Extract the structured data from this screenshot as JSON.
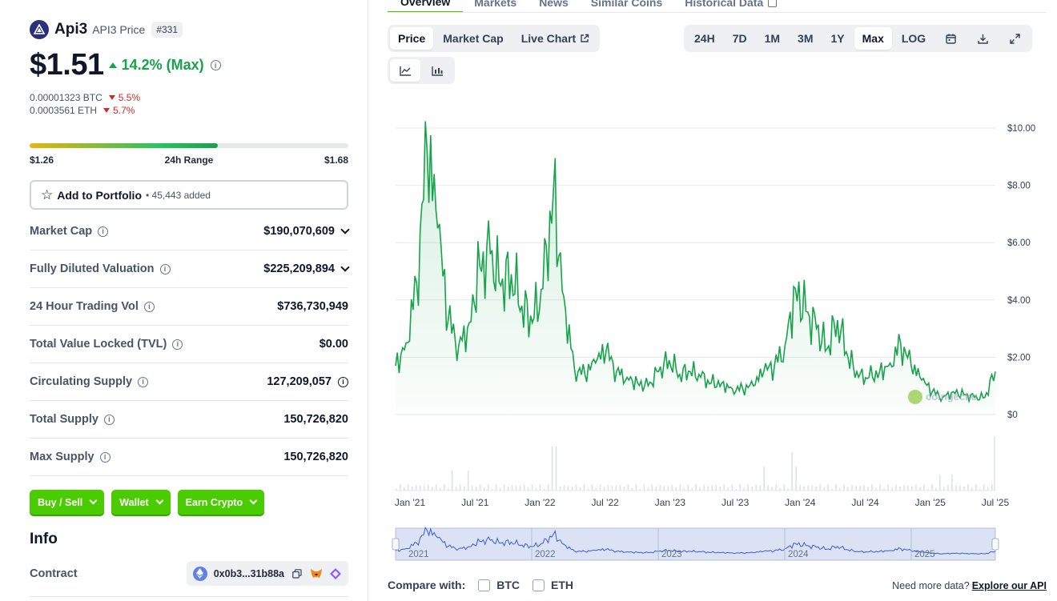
{
  "coin": {
    "name": "Api3",
    "subtitle": "API3 Price",
    "rank": "#331",
    "price": "$1.51",
    "change": "14.2% (Max)",
    "btc_price": "0.00001323 BTC",
    "btc_change": "5.5%",
    "eth_price": "0.0003561 ETH",
    "eth_change": "5.7%"
  },
  "range": {
    "low": "$1.26",
    "label": "24h Range",
    "high": "$1.68",
    "fill_percent": 59
  },
  "portfolio": {
    "label": "Add to Portfolio",
    "count": "• 45,443 added"
  },
  "stats": [
    {
      "label": "Market Cap",
      "value": "$190,070,609",
      "has_info": true,
      "expandable": true
    },
    {
      "label": "Fully Diluted Valuation",
      "value": "$225,209,894",
      "has_info": true,
      "expandable": true
    },
    {
      "label": "24 Hour Trading Vol",
      "value": "$736,730,949",
      "has_info": true,
      "expandable": false
    },
    {
      "label": "Total Value Locked (TVL)",
      "value": "$0.00",
      "has_info": true,
      "expandable": false
    },
    {
      "label": "Circulating Supply",
      "value": "127,209,057",
      "has_info": true,
      "expandable": false,
      "value_info": true
    },
    {
      "label": "Total Supply",
      "value": "150,726,820",
      "has_info": true,
      "expandable": false
    },
    {
      "label": "Max Supply",
      "value": "150,726,820",
      "has_info": true,
      "expandable": false
    }
  ],
  "actions": [
    {
      "label": "Buy / Sell"
    },
    {
      "label": "Wallet"
    },
    {
      "label": "Earn Crypto"
    }
  ],
  "info": {
    "title": "Info",
    "contract_label": "Contract",
    "contract_address": "0x0b3...31b88a"
  },
  "tabs": [
    "Overview",
    "Markets",
    "News",
    "Similar Coins",
    "Historical Data"
  ],
  "chart_type_tabs": [
    "Price",
    "Market Cap",
    "Live Chart"
  ],
  "range_tabs": [
    "24H",
    "7D",
    "1M",
    "3M",
    "1Y",
    "Max",
    "LOG"
  ],
  "active_range": "Max",
  "compare": {
    "label": "Compare with:",
    "options": [
      "BTC",
      "ETH"
    ]
  },
  "api_note": {
    "text": "Need more data?",
    "link": "Explore our API"
  },
  "colors": {
    "accent_green": "#4bcc00",
    "price_line": "#16a34a",
    "negative": "#dc2626"
  },
  "chart_data": {
    "type": "line",
    "series": [
      {
        "x": [
          "2020-12",
          "2021-01",
          "2021-02",
          "2021-03",
          "2021-04",
          "2021-05",
          "2021-06",
          "2021-07",
          "2021-08",
          "2021-09",
          "2021-10",
          "2021-11",
          "2021-12",
          "2022-01",
          "2022-02",
          "2022-03",
          "2022-04",
          "2022-05",
          "2022-06",
          "2022-07",
          "2022-08",
          "2022-09",
          "2022-10",
          "2022-11",
          "2022-12",
          "2023-01",
          "2023-02",
          "2023-03",
          "2023-04",
          "2023-05",
          "2023-06",
          "2023-07",
          "2023-08",
          "2023-09",
          "2023-10",
          "2023-11",
          "2023-12",
          "2024-01",
          "2024-02",
          "2024-03",
          "2024-04",
          "2024-05",
          "2024-06",
          "2024-07",
          "2024-08",
          "2024-09",
          "2024-10",
          "2024-11",
          "2024-12",
          "2025-01",
          "2025-02",
          "2025-03",
          "2025-04",
          "2025-05",
          "2025-06",
          "2025-07",
          "2025-08",
          "2025-09"
        ],
        "values": [
          1.7,
          2.5,
          4.6,
          9.2,
          6.5,
          3.3,
          2.4,
          3.2,
          5.2,
          5.6,
          4.5,
          4.9,
          3.8,
          3.2,
          4.4,
          7.8,
          4.1,
          1.6,
          1.4,
          1.8,
          2.2,
          1.5,
          1.3,
          1.1,
          1.0,
          1.5,
          1.9,
          1.4,
          1.5,
          1.3,
          1.1,
          1.1,
          0.9,
          0.9,
          1.0,
          1.5,
          1.7,
          2.4,
          4.4,
          3.6,
          3.0,
          2.3,
          3.3,
          2.0,
          1.3,
          1.3,
          1.5,
          1.8,
          2.5,
          1.7,
          1.2,
          0.8,
          0.6,
          0.8,
          0.7,
          0.6,
          0.6,
          1.5
        ]
      }
    ],
    "x_tick_labels": [
      "Jan '21",
      "Jul '21",
      "Jan '22",
      "Jul '22",
      "Jan '23",
      "Jul '23",
      "Jan '24",
      "Jul '24",
      "Jan '25",
      "Jul '25"
    ],
    "y_tick_labels": [
      "$10.00",
      "$8.00",
      "$6.00",
      "$4.00",
      "$2.00",
      "$0"
    ],
    "ylim": [
      0,
      10
    ],
    "navigator_labels": [
      "2021",
      "2022",
      "2023",
      "2024",
      "2025"
    ],
    "grid": true,
    "watermark": "coingecko"
  }
}
